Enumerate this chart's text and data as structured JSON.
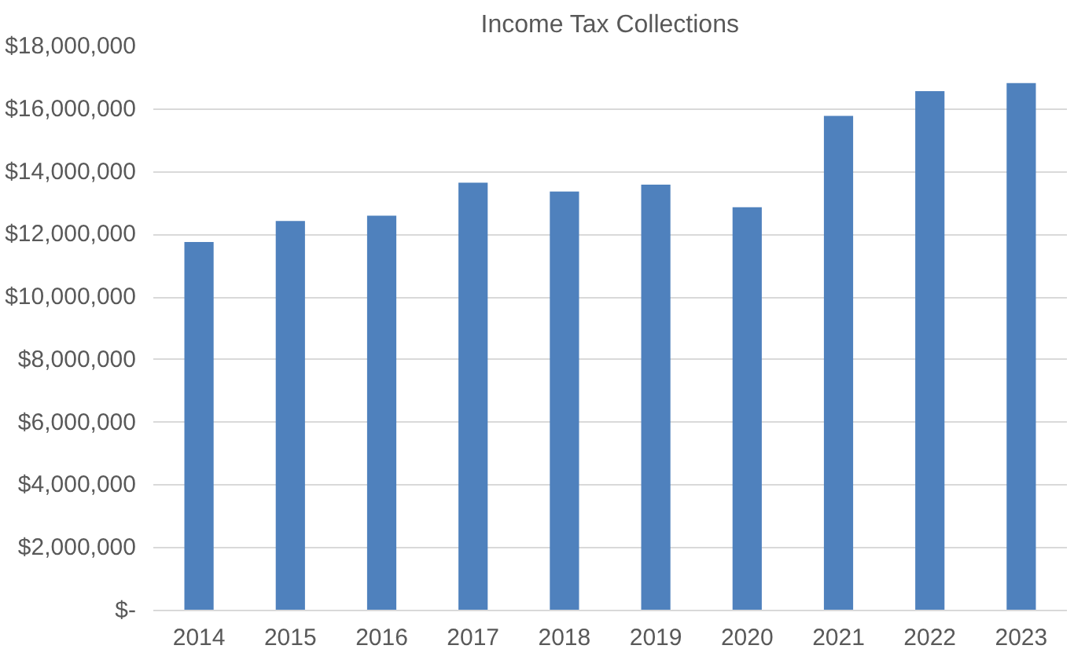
{
  "chart_data": {
    "type": "bar",
    "title": "Income Tax Collections",
    "categories": [
      "2014",
      "2015",
      "2016",
      "2017",
      "2018",
      "2019",
      "2020",
      "2021",
      "2022",
      "2023"
    ],
    "values": [
      11760000,
      12430000,
      12600000,
      13650000,
      13370000,
      13590000,
      12870000,
      15780000,
      16570000,
      16830000
    ],
    "color": "#4f81bd",
    "ylim": [
      0,
      18000000
    ],
    "yticks": [
      {
        "value": 0,
        "label": "$-"
      },
      {
        "value": 2000000,
        "label": "$2,000,000"
      },
      {
        "value": 4000000,
        "label": "$4,000,000"
      },
      {
        "value": 6000000,
        "label": "$6,000,000"
      },
      {
        "value": 8000000,
        "label": "$8,000,000"
      },
      {
        "value": 10000000,
        "label": "$10,000,000"
      },
      {
        "value": 12000000,
        "label": "$12,000,000"
      },
      {
        "value": 14000000,
        "label": "$14,000,000"
      },
      {
        "value": 16000000,
        "label": "$16,000,000"
      },
      {
        "value": 18000000,
        "label": "$18,000,000"
      }
    ],
    "grid": "y"
  }
}
